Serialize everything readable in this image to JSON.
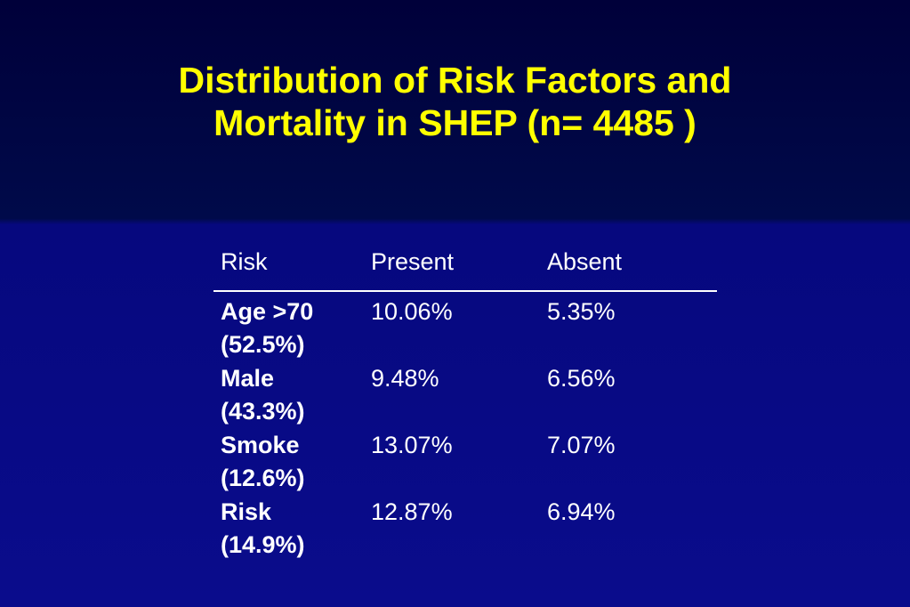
{
  "slide": {
    "title_line1": "Distribution of Risk Factors and",
    "title_line2": "Mortality in SHEP (n= 4485 )",
    "colors": {
      "title": "#ffff00",
      "text": "#ffffff",
      "background_top": "#00003a",
      "background_bottom": "#0a0c8c"
    }
  },
  "table": {
    "headers": [
      "Risk",
      "Present",
      "Absent"
    ],
    "rows": [
      {
        "risk": "Age >70",
        "prevalence": "(52.5%)",
        "present": "10.06%",
        "absent": "5.35%"
      },
      {
        "risk": "Male",
        "prevalence": "(43.3%)",
        "present": "9.48%",
        "absent": "6.56%"
      },
      {
        "risk": "Smoke",
        "prevalence": "(12.6%)",
        "present": "13.07%",
        "absent": "7.07%"
      },
      {
        "risk": "Risk",
        "prevalence": "(14.9%)",
        "present": "12.87%",
        "absent": "6.94%"
      }
    ]
  }
}
